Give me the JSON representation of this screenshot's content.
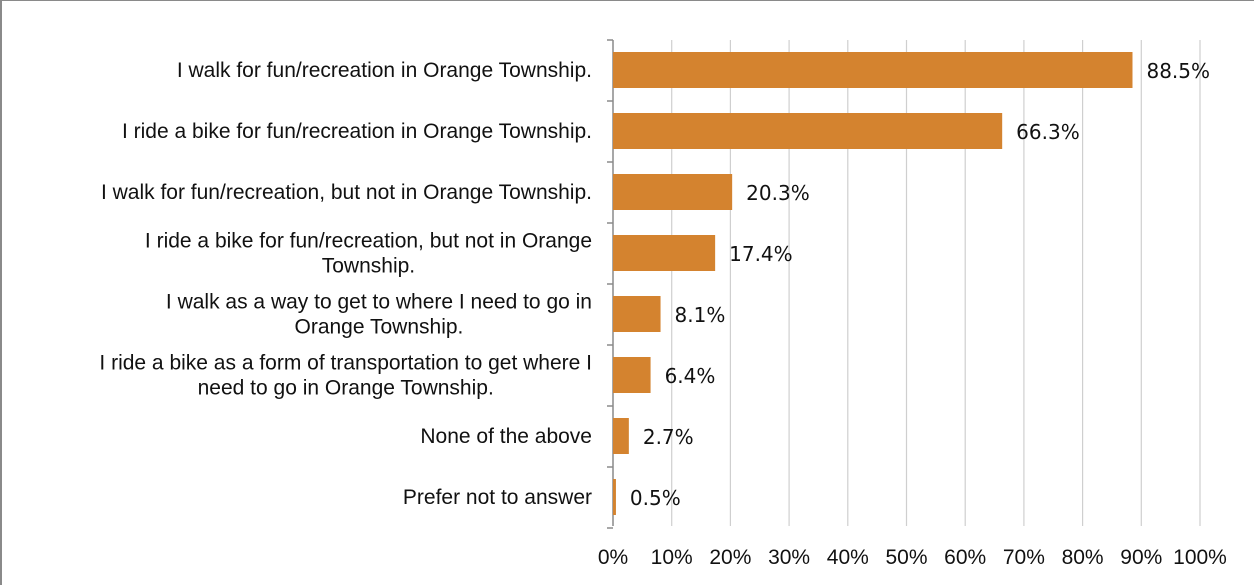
{
  "chart_data": {
    "type": "bar",
    "orientation": "horizontal",
    "categories": [
      "I walk for fun/recreation in Orange Township.",
      "I ride a bike for fun/recreation in Orange Township.",
      "I walk for fun/recreation, but not in Orange Township.",
      "I ride a bike for fun/recreation, but not in Orange Township.",
      "I walk as a way to get to where I need to go in Orange Township.",
      "I ride a bike as a form of transportation to get where I need to go in Orange Township.",
      "None of the above",
      "Prefer not to answer"
    ],
    "category_lines": [
      [
        "I walk for fun/recreation in Orange Township."
      ],
      [
        "I ride a bike for fun/recreation in Orange Township."
      ],
      [
        "I walk for fun/recreation, but not in Orange Township."
      ],
      [
        "I ride a bike for fun/recreation, but not in Orange",
        "Township."
      ],
      [
        "I walk as a way to get to where I need to go in",
        "Orange Township."
      ],
      [
        "I ride a bike as a form of transportation to get where I",
        "need to go in Orange Township."
      ],
      [
        "None of the above"
      ],
      [
        "Prefer not to answer"
      ]
    ],
    "values": [
      88.5,
      66.3,
      20.3,
      17.4,
      8.1,
      6.4,
      2.7,
      0.5
    ],
    "data_labels": [
      "88.5%",
      "66.3%",
      "20.3%",
      "17.4%",
      "8.1%",
      "6.4%",
      "2.7%",
      "0.5%"
    ],
    "xlim": [
      0,
      100
    ],
    "x_ticks": [
      0,
      10,
      20,
      30,
      40,
      50,
      60,
      70,
      80,
      90,
      100
    ],
    "x_tick_labels": [
      "0%",
      "10%",
      "20%",
      "30%",
      "40%",
      "50%",
      "60%",
      "70%",
      "80%",
      "90%",
      "100%"
    ],
    "grid": true,
    "legend": "none",
    "title": "",
    "xlabel": "",
    "ylabel": "",
    "colors": {
      "bar": "#d4832f",
      "grid": "#cfcfcf",
      "axis": "#8a8a8a",
      "frame": "#8a8a8a"
    }
  }
}
